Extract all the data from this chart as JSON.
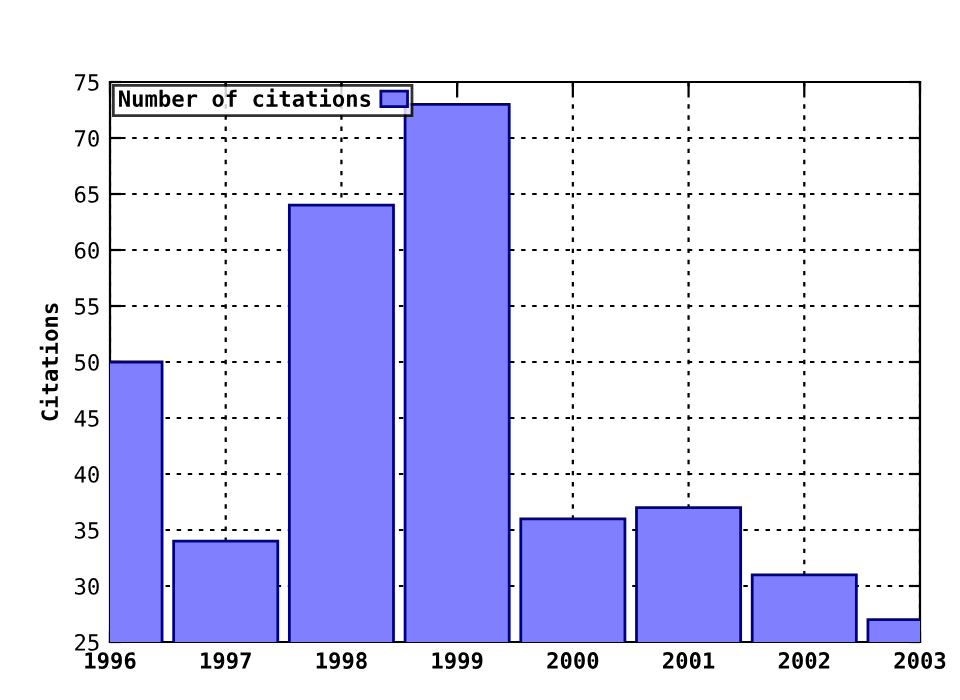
{
  "chart_data": {
    "type": "bar",
    "ylabel": "Citations",
    "x": [
      1996,
      1997,
      1998,
      1999,
      2000,
      2001,
      2002,
      2003
    ],
    "series": [
      {
        "name": "Number of citations",
        "color": "#8080ff",
        "values": [
          50,
          34,
          64,
          73,
          36,
          37,
          31,
          27
        ]
      }
    ],
    "xlim": [
      1996,
      2003
    ],
    "xticks": [
      1996,
      1997,
      1998,
      1999,
      2000,
      2001,
      2002,
      2003
    ],
    "ylim": [
      25,
      75
    ],
    "yticks": [
      25,
      30,
      35,
      40,
      45,
      50,
      55,
      60,
      65,
      70,
      75
    ],
    "grid": true,
    "legend": "top left"
  }
}
